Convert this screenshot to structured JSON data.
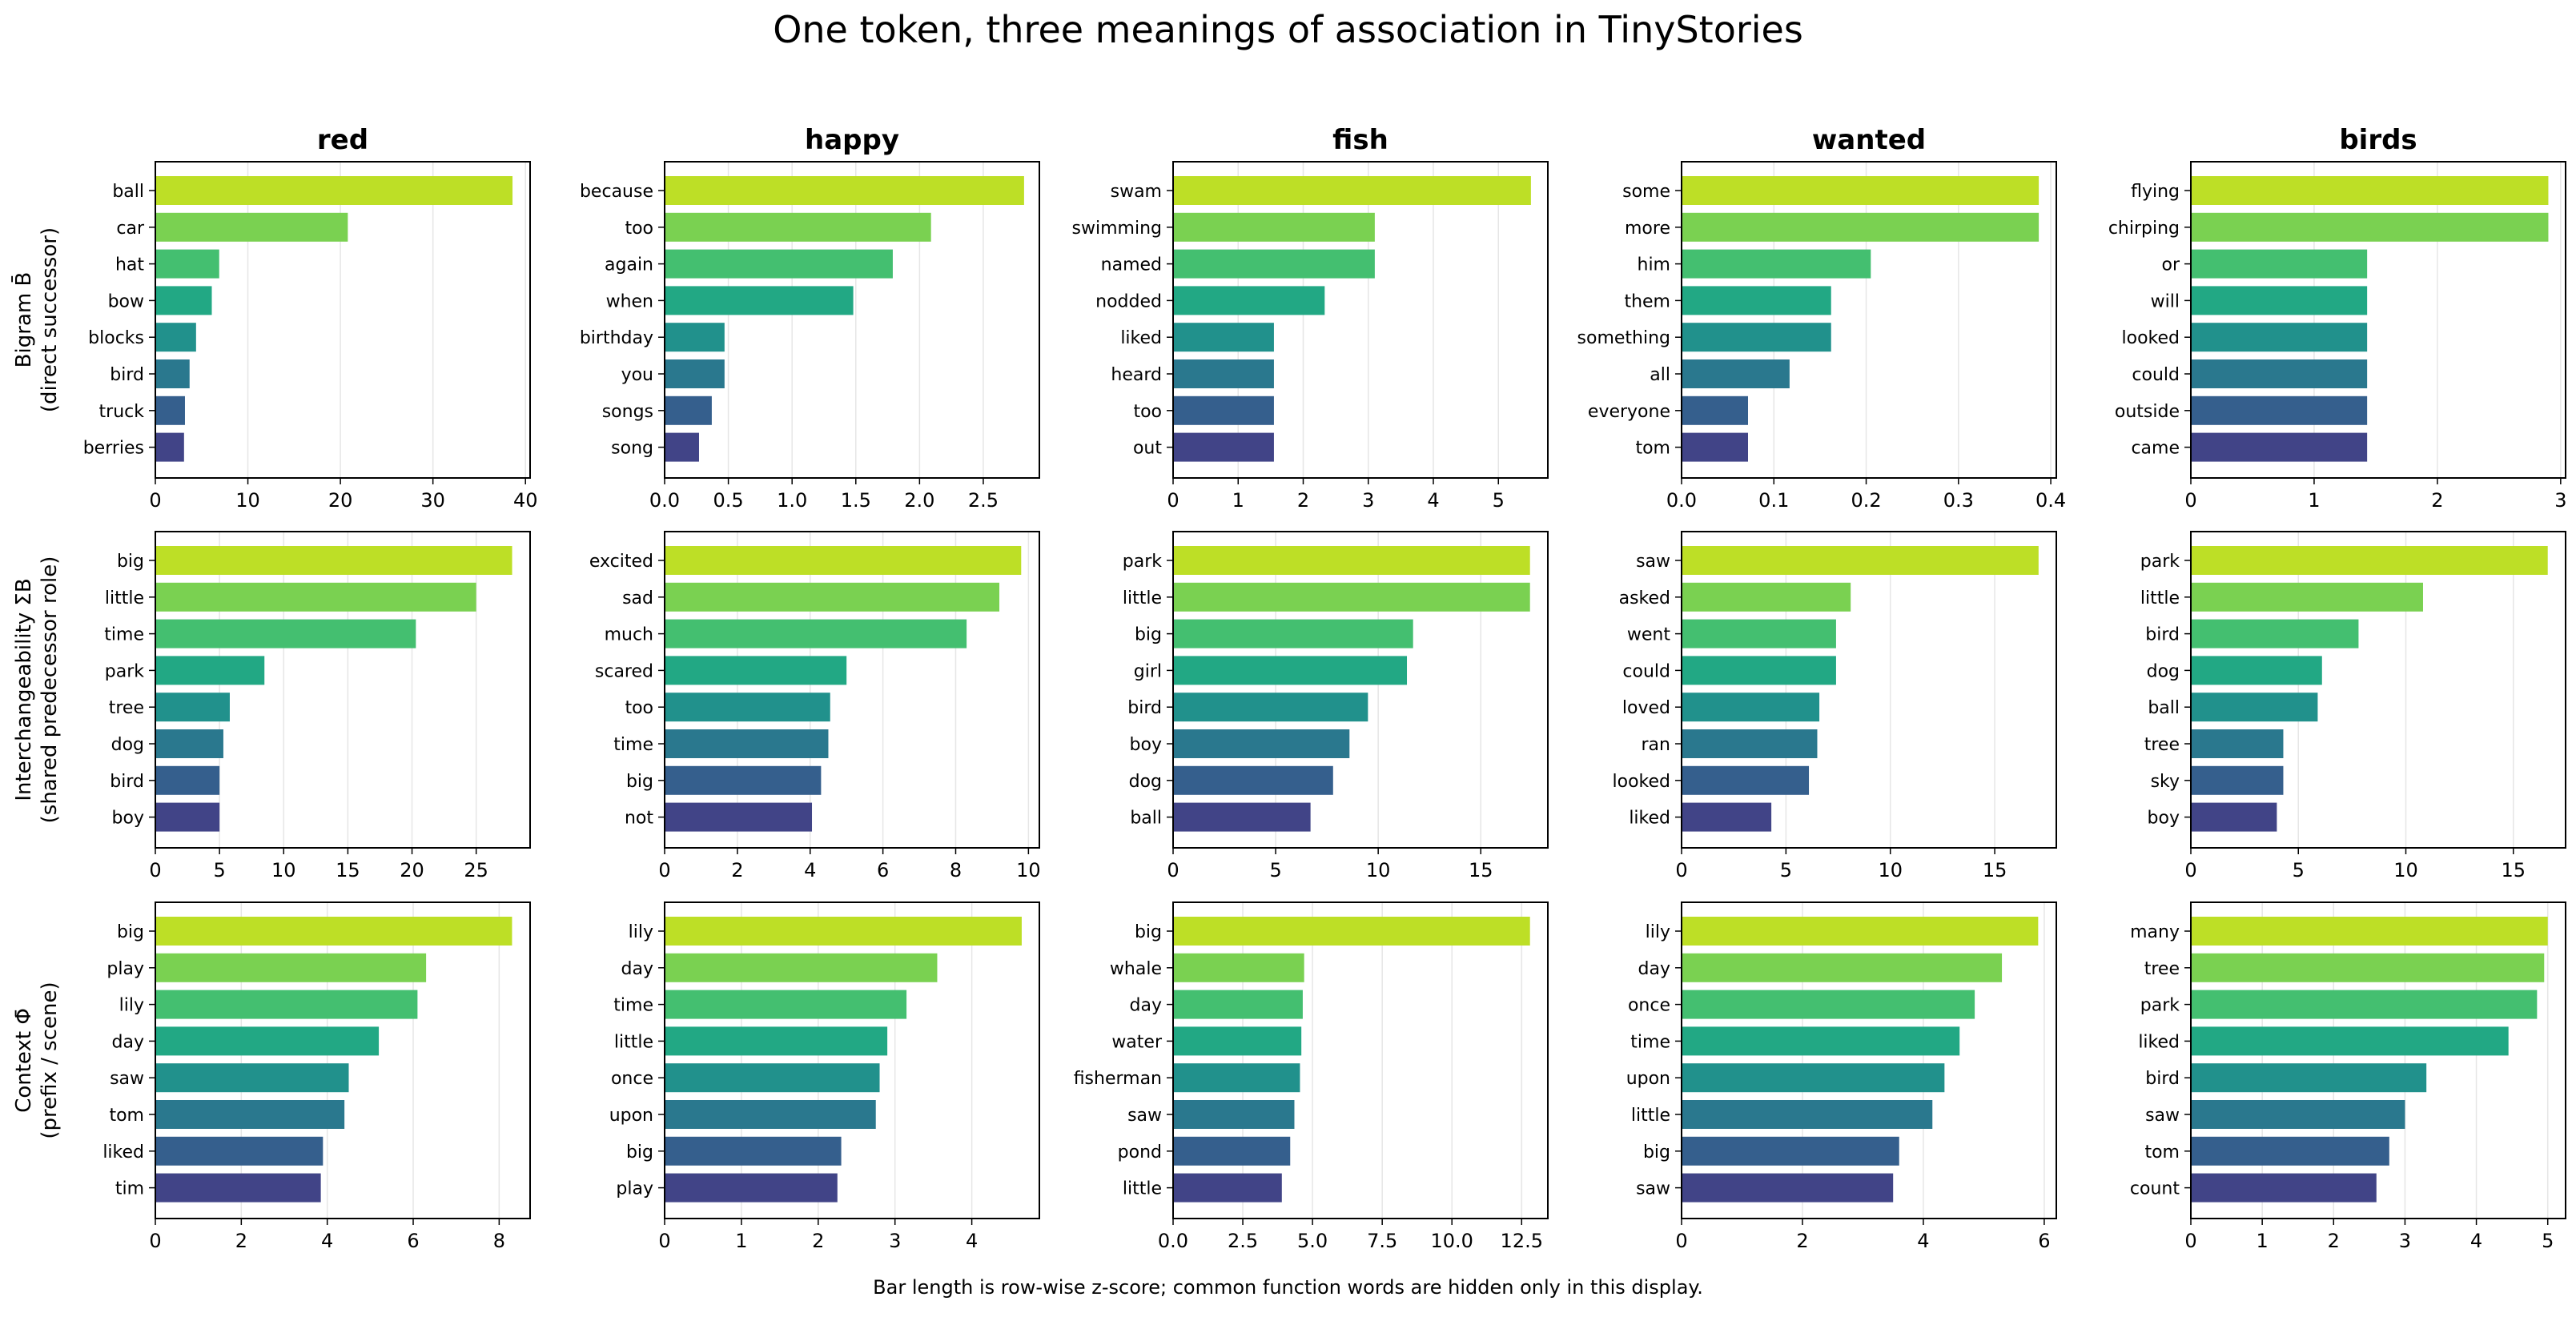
{
  "suptitle": "One token, three meanings of association in TinyStories",
  "footnote": "Bar length is row-wise z-score; common function words are hidden only in this display.",
  "chart_data": {
    "type": "bar",
    "orientation": "horizontal",
    "columns": [
      "red",
      "happy",
      "fish",
      "wanted",
      "birds"
    ],
    "rows": [
      {
        "label_lines": [
          "Bigram B̄",
          "(direct successor)"
        ]
      },
      {
        "label_lines": [
          "Interchangeability ΣB",
          "(shared predecessor role)"
        ]
      },
      {
        "label_lines": [
          "Context Φ̄",
          "(prefix / scene)"
        ]
      }
    ],
    "bar_colors": [
      "#bddf26",
      "#7ad151",
      "#44bf70",
      "#22a884",
      "#21918c",
      "#2a788e",
      "#355f8d",
      "#414487"
    ],
    "panels": [
      [
        {
          "categories": [
            "ball",
            "car",
            "hat",
            "bow",
            "blocks",
            "bird",
            "truck",
            "berries"
          ],
          "values": [
            38.6,
            20.8,
            6.9,
            6.1,
            4.4,
            3.7,
            3.2,
            3.1
          ],
          "xlim": [
            0,
            40.5
          ],
          "ticks": [
            0,
            10,
            20,
            30,
            40
          ],
          "tick_labels": [
            "0",
            "10",
            "20",
            "30",
            "40"
          ]
        },
        {
          "categories": [
            "because",
            "too",
            "again",
            "when",
            "birthday",
            "you",
            "songs",
            "song"
          ],
          "values": [
            2.82,
            2.09,
            1.79,
            1.48,
            0.47,
            0.47,
            0.37,
            0.27
          ],
          "xlim": [
            0,
            2.94
          ],
          "ticks": [
            0,
            0.5,
            1,
            1.5,
            2,
            2.5
          ],
          "tick_labels": [
            "0.0",
            "0.5",
            "1.0",
            "1.5",
            "2.0",
            "2.5"
          ]
        },
        {
          "categories": [
            "swam",
            "swimming",
            "named",
            "nodded",
            "liked",
            "heard",
            "too",
            "out"
          ],
          "values": [
            5.5,
            3.1,
            3.1,
            2.33,
            1.55,
            1.55,
            1.55,
            1.55
          ],
          "xlim": [
            0,
            5.76
          ],
          "ticks": [
            0,
            1,
            2,
            3,
            4,
            5
          ],
          "tick_labels": [
            "0",
            "1",
            "2",
            "3",
            "4",
            "5"
          ]
        },
        {
          "categories": [
            "some",
            "more",
            "him",
            "them",
            "something",
            "all",
            "everyone",
            "tom"
          ],
          "values": [
            0.387,
            0.387,
            0.205,
            0.162,
            0.162,
            0.117,
            0.072,
            0.072
          ],
          "xlim": [
            0,
            0.406
          ],
          "ticks": [
            0,
            0.1,
            0.2,
            0.3,
            0.4
          ],
          "tick_labels": [
            "0.0",
            "0.1",
            "0.2",
            "0.3",
            "0.4"
          ]
        },
        {
          "categories": [
            "flying",
            "chirping",
            "or",
            "will",
            "looked",
            "could",
            "outside",
            "came"
          ],
          "values": [
            2.9,
            2.9,
            1.43,
            1.43,
            1.43,
            1.43,
            1.43,
            1.43
          ],
          "xlim": [
            0,
            3.04
          ],
          "ticks": [
            0,
            1,
            2,
            3
          ],
          "tick_labels": [
            "0",
            "1",
            "2",
            "3"
          ]
        }
      ],
      [
        {
          "categories": [
            "big",
            "little",
            "time",
            "park",
            "tree",
            "dog",
            "bird",
            "boy"
          ],
          "values": [
            27.8,
            25.0,
            20.3,
            8.5,
            5.8,
            5.3,
            5.0,
            5.0
          ],
          "xlim": [
            0,
            29.2
          ],
          "ticks": [
            0,
            5,
            10,
            15,
            20,
            25
          ],
          "tick_labels": [
            "0",
            "5",
            "10",
            "15",
            "20",
            "25"
          ]
        },
        {
          "categories": [
            "excited",
            "sad",
            "much",
            "scared",
            "too",
            "time",
            "big",
            "not"
          ],
          "values": [
            9.8,
            9.2,
            8.3,
            5.0,
            4.55,
            4.5,
            4.3,
            4.05
          ],
          "xlim": [
            0,
            10.3
          ],
          "ticks": [
            0,
            2,
            4,
            6,
            8,
            10
          ],
          "tick_labels": [
            "0",
            "2",
            "4",
            "6",
            "8",
            "10"
          ]
        },
        {
          "categories": [
            "park",
            "little",
            "big",
            "girl",
            "bird",
            "boy",
            "dog",
            "ball"
          ],
          "values": [
            17.4,
            17.4,
            11.7,
            11.4,
            9.5,
            8.6,
            7.8,
            6.7
          ],
          "xlim": [
            0,
            18.27
          ],
          "ticks": [
            0,
            5,
            10,
            15
          ],
          "tick_labels": [
            "0",
            "5",
            "10",
            "15"
          ]
        },
        {
          "categories": [
            "saw",
            "asked",
            "went",
            "could",
            "loved",
            "ran",
            "looked",
            "liked"
          ],
          "values": [
            17.1,
            8.1,
            7.4,
            7.4,
            6.6,
            6.5,
            6.1,
            4.3
          ],
          "xlim": [
            0,
            17.95
          ],
          "ticks": [
            0,
            5,
            10,
            15
          ],
          "tick_labels": [
            "0",
            "5",
            "10",
            "15"
          ]
        },
        {
          "categories": [
            "park",
            "little",
            "bird",
            "dog",
            "ball",
            "tree",
            "sky",
            "boy"
          ],
          "values": [
            16.6,
            10.8,
            7.8,
            6.1,
            5.9,
            4.3,
            4.3,
            4.0
          ],
          "xlim": [
            0,
            17.43
          ],
          "ticks": [
            0,
            5,
            10,
            15
          ],
          "tick_labels": [
            "0",
            "5",
            "10",
            "15"
          ]
        }
      ],
      [
        {
          "categories": [
            "big",
            "play",
            "lily",
            "day",
            "saw",
            "tom",
            "liked",
            "tim"
          ],
          "values": [
            8.3,
            6.3,
            6.1,
            5.2,
            4.5,
            4.4,
            3.9,
            3.85
          ],
          "xlim": [
            0,
            8.72
          ],
          "ticks": [
            0,
            2,
            4,
            6,
            8
          ],
          "tick_labels": [
            "0",
            "2",
            "4",
            "6",
            "8"
          ]
        },
        {
          "categories": [
            "lily",
            "day",
            "time",
            "little",
            "once",
            "upon",
            "big",
            "play"
          ],
          "values": [
            4.65,
            3.55,
            3.15,
            2.9,
            2.8,
            2.75,
            2.3,
            2.25
          ],
          "xlim": [
            0,
            4.88
          ],
          "ticks": [
            0,
            1,
            2,
            3,
            4
          ],
          "tick_labels": [
            "0",
            "1",
            "2",
            "3",
            "4"
          ]
        },
        {
          "categories": [
            "big",
            "whale",
            "day",
            "water",
            "fisherman",
            "saw",
            "pond",
            "little"
          ],
          "values": [
            12.8,
            4.7,
            4.65,
            4.6,
            4.55,
            4.35,
            4.2,
            3.9
          ],
          "xlim": [
            0,
            13.44
          ],
          "ticks": [
            0,
            2.5,
            5,
            7.5,
            10,
            12.5
          ],
          "tick_labels": [
            "0.0",
            "2.5",
            "5.0",
            "7.5",
            "10.0",
            "12.5"
          ]
        },
        {
          "categories": [
            "lily",
            "day",
            "once",
            "time",
            "upon",
            "little",
            "big",
            "saw"
          ],
          "values": [
            5.9,
            5.3,
            4.85,
            4.6,
            4.35,
            4.15,
            3.6,
            3.5
          ],
          "xlim": [
            0,
            6.2
          ],
          "ticks": [
            0,
            2,
            4,
            6
          ],
          "tick_labels": [
            "0",
            "2",
            "4",
            "6"
          ]
        },
        {
          "categories": [
            "many",
            "tree",
            "park",
            "liked",
            "bird",
            "saw",
            "tom",
            "count"
          ],
          "values": [
            5.0,
            4.95,
            4.85,
            4.45,
            3.3,
            3.0,
            2.78,
            2.6
          ],
          "xlim": [
            0,
            5.25
          ],
          "ticks": [
            0,
            1,
            2,
            3,
            4,
            5
          ],
          "tick_labels": [
            "0",
            "1",
            "2",
            "3",
            "4",
            "5"
          ]
        }
      ]
    ],
    "grid": "vertical"
  }
}
